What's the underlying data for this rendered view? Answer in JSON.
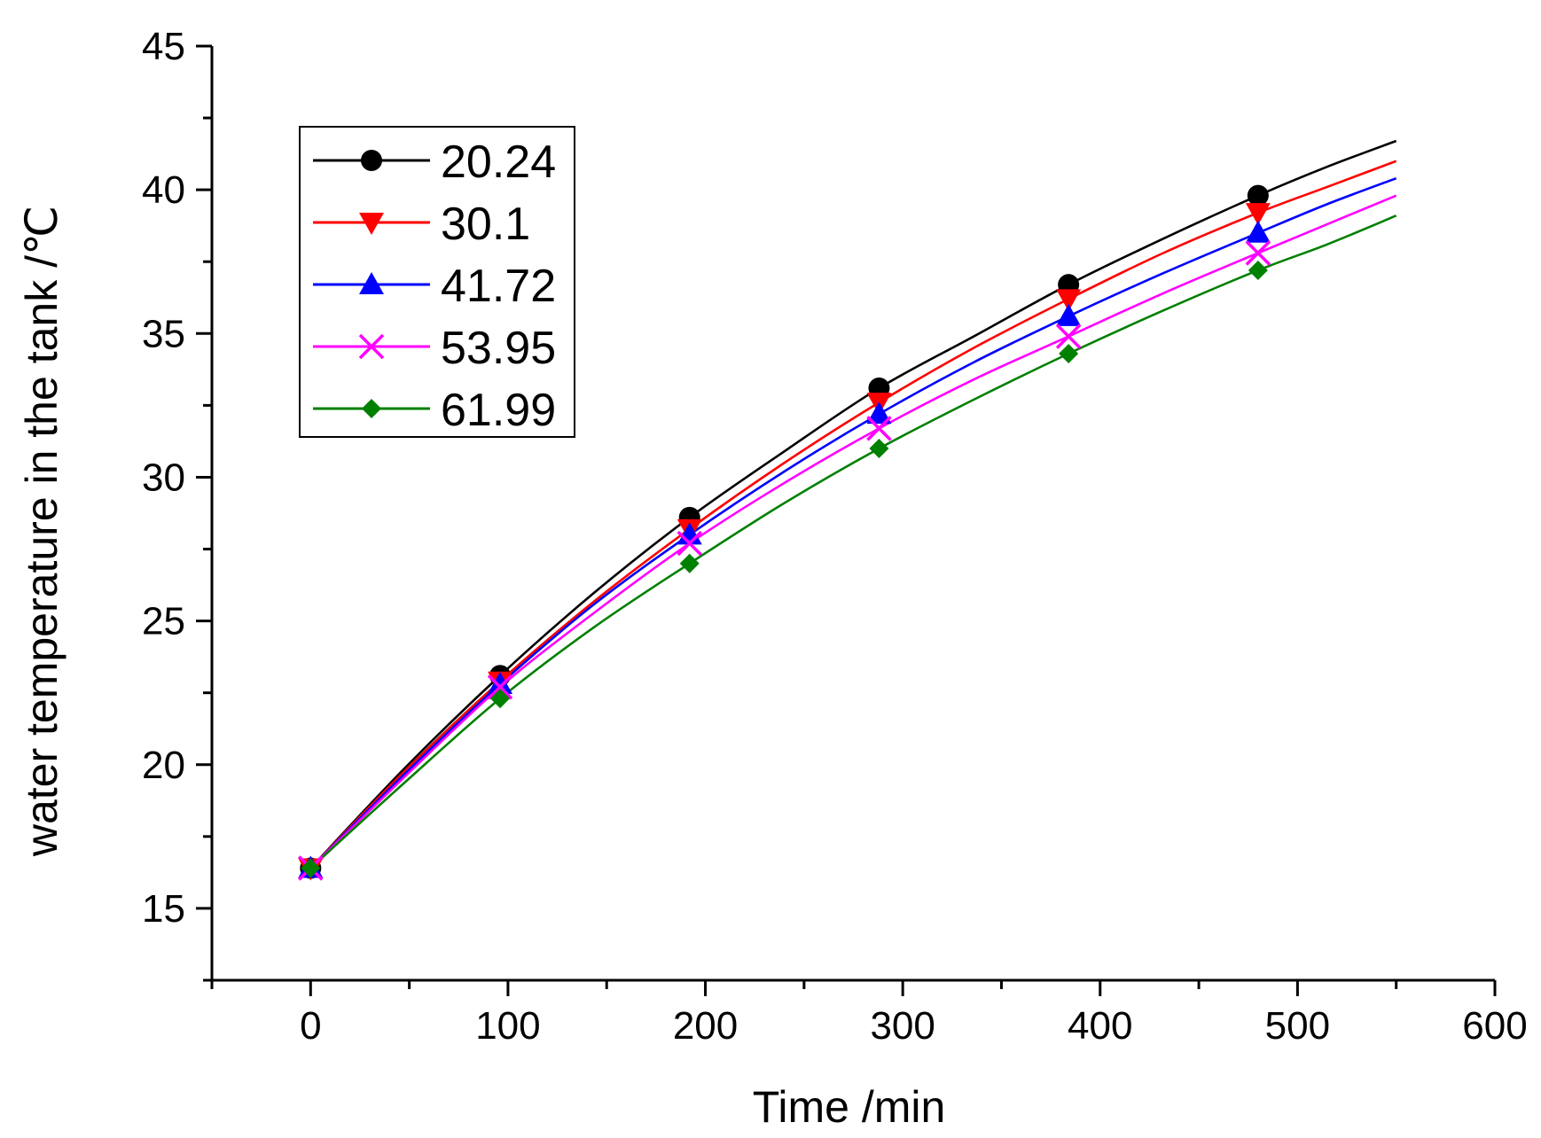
{
  "chart_data": {
    "type": "line",
    "title": "",
    "xlabel": "Time /min",
    "ylabel": "water temperature in the tank /℃",
    "xlim": [
      -50,
      600
    ],
    "ylim": [
      12.5,
      45
    ],
    "x_ticks": [
      0,
      100,
      200,
      300,
      400,
      500,
      600
    ],
    "y_ticks": [
      15,
      20,
      25,
      30,
      35,
      40,
      45
    ],
    "x_minor_step": 50,
    "y_minor_step": 2.5,
    "grid": false,
    "legend_position": "top-left",
    "x": [
      0,
      96,
      192,
      288,
      384,
      480
    ],
    "series": [
      {
        "name": "20.24",
        "color": "#000000",
        "marker": "circle",
        "values": [
          16.4,
          23.1,
          28.6,
          33.1,
          36.7,
          39.8
        ],
        "curve_x": [
          0,
          48,
          96,
          144,
          192,
          240,
          288,
          336,
          384,
          432,
          480,
          515,
          550
        ],
        "curve_y": [
          16.4,
          19.9,
          23.1,
          26.0,
          28.6,
          30.9,
          33.1,
          34.9,
          36.7,
          38.3,
          39.8,
          40.8,
          41.7
        ]
      },
      {
        "name": "30.1",
        "color": "#ff0000",
        "marker": "triangle-down",
        "values": [
          16.4,
          22.9,
          28.2,
          32.6,
          36.2,
          39.2
        ],
        "curve_x": [
          0,
          48,
          96,
          144,
          192,
          240,
          288,
          336,
          384,
          432,
          480,
          515,
          550
        ],
        "curve_y": [
          16.4,
          19.8,
          22.9,
          25.7,
          28.2,
          30.5,
          32.6,
          34.5,
          36.2,
          37.8,
          39.2,
          40.1,
          41.0
        ]
      },
      {
        "name": "41.72",
        "color": "#0000ff",
        "marker": "triangle-up",
        "values": [
          16.4,
          22.8,
          28.0,
          32.2,
          35.6,
          38.5
        ],
        "curve_x": [
          0,
          48,
          96,
          144,
          192,
          240,
          288,
          336,
          384,
          432,
          480,
          515,
          550
        ],
        "curve_y": [
          16.4,
          19.7,
          22.8,
          25.6,
          28.0,
          30.2,
          32.2,
          34.0,
          35.6,
          37.1,
          38.5,
          39.5,
          40.4
        ]
      },
      {
        "name": "53.95",
        "color": "#ff00ff",
        "marker": "x",
        "values": [
          16.4,
          22.7,
          27.7,
          31.7,
          34.9,
          37.8
        ],
        "curve_x": [
          0,
          48,
          96,
          144,
          192,
          240,
          288,
          336,
          384,
          432,
          480,
          515,
          550
        ],
        "curve_y": [
          16.4,
          19.6,
          22.7,
          25.3,
          27.7,
          29.8,
          31.7,
          33.4,
          34.9,
          36.4,
          37.8,
          38.8,
          39.8
        ]
      },
      {
        "name": "61.99",
        "color": "#008000",
        "marker": "diamond",
        "values": [
          16.4,
          22.3,
          27.0,
          31.0,
          34.3,
          37.2
        ],
        "curve_x": [
          0,
          48,
          96,
          144,
          192,
          240,
          288,
          336,
          384,
          432,
          480,
          515,
          550
        ],
        "curve_y": [
          16.4,
          19.4,
          22.3,
          24.8,
          27.0,
          29.1,
          31.0,
          32.7,
          34.3,
          35.8,
          37.2,
          38.1,
          39.1
        ]
      }
    ]
  }
}
